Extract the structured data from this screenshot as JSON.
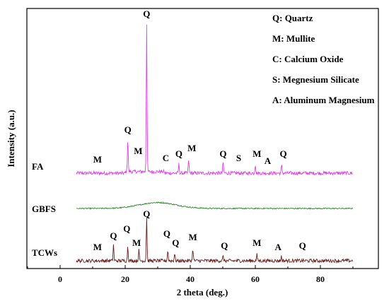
{
  "chart_data": {
    "type": "line",
    "xlabel": "2 theta (deg.)",
    "ylabel": "Intensity (a.u.)",
    "xlim": [
      -10,
      95
    ],
    "xticks": [
      "0",
      "20",
      "40",
      "60",
      "80"
    ],
    "grid": false,
    "legend_placement": "top-right",
    "legend": [
      "Q: Quartz",
      "M: Mullite",
      "C: Calcium Oxide",
      "S: Megnesium Silicate",
      "A: Aluminum Magnesium"
    ],
    "series": [
      {
        "name": "FA",
        "color": "#e040e8",
        "x_start": 5,
        "x_end": 90,
        "peaks": [
          {
            "x": 20.8,
            "h": 0.22
          },
          {
            "x": 26.6,
            "h": 1.0
          },
          {
            "x": 36.5,
            "h": 0.06
          },
          {
            "x": 39.5,
            "h": 0.09
          },
          {
            "x": 50.1,
            "h": 0.07
          },
          {
            "x": 60.0,
            "h": 0.06
          },
          {
            "x": 68.1,
            "h": 0.05
          }
        ],
        "labels": [
          {
            "text": "M",
            "x": 11.5
          },
          {
            "text": "Q",
            "x": 20.8
          },
          {
            "text": "M",
            "x": 24.0
          },
          {
            "text": "Q",
            "x": 26.6
          },
          {
            "text": "C",
            "x": 32.5
          },
          {
            "text": "Q",
            "x": 36.5
          },
          {
            "text": "M",
            "x": 40.5
          },
          {
            "text": "Q",
            "x": 50.1
          },
          {
            "text": "S",
            "x": 54.9
          },
          {
            "text": "M",
            "x": 60.5
          },
          {
            "text": "A",
            "x": 63.8
          },
          {
            "text": "Q",
            "x": 68.6
          }
        ]
      },
      {
        "name": "GBFS",
        "color": "#2e8b2e",
        "x_start": 5,
        "x_end": 90,
        "hump": {
          "x": 30,
          "h": 0.04
        },
        "peaks": [],
        "labels": []
      },
      {
        "name": "TCWs",
        "color": "#6b1f1f",
        "x_start": 5,
        "x_end": 90,
        "peaks": [
          {
            "x": 16.4,
            "h": 0.11
          },
          {
            "x": 20.8,
            "h": 0.1
          },
          {
            "x": 24.2,
            "h": 0.07
          },
          {
            "x": 26.6,
            "h": 0.3
          },
          {
            "x": 33.1,
            "h": 0.07
          },
          {
            "x": 35.2,
            "h": 0.05
          },
          {
            "x": 40.8,
            "h": 0.08
          },
          {
            "x": 50.1,
            "h": 0.03
          },
          {
            "x": 60.5,
            "h": 0.04
          },
          {
            "x": 68.0,
            "h": 0.03
          }
        ],
        "labels": [
          {
            "text": "M",
            "x": 11.5
          },
          {
            "text": "Q",
            "x": 16.4
          },
          {
            "text": "Q",
            "x": 20.5
          },
          {
            "text": "M",
            "x": 23.5
          },
          {
            "text": "Q",
            "x": 26.6
          },
          {
            "text": "Q",
            "x": 32.8
          },
          {
            "text": "Q",
            "x": 35.5
          },
          {
            "text": "M",
            "x": 40.8
          },
          {
            "text": "Q",
            "x": 50.5
          },
          {
            "text": "M",
            "x": 60.5
          },
          {
            "text": "A",
            "x": 67.0
          },
          {
            "text": "Q",
            "x": 74.5
          }
        ]
      }
    ]
  }
}
